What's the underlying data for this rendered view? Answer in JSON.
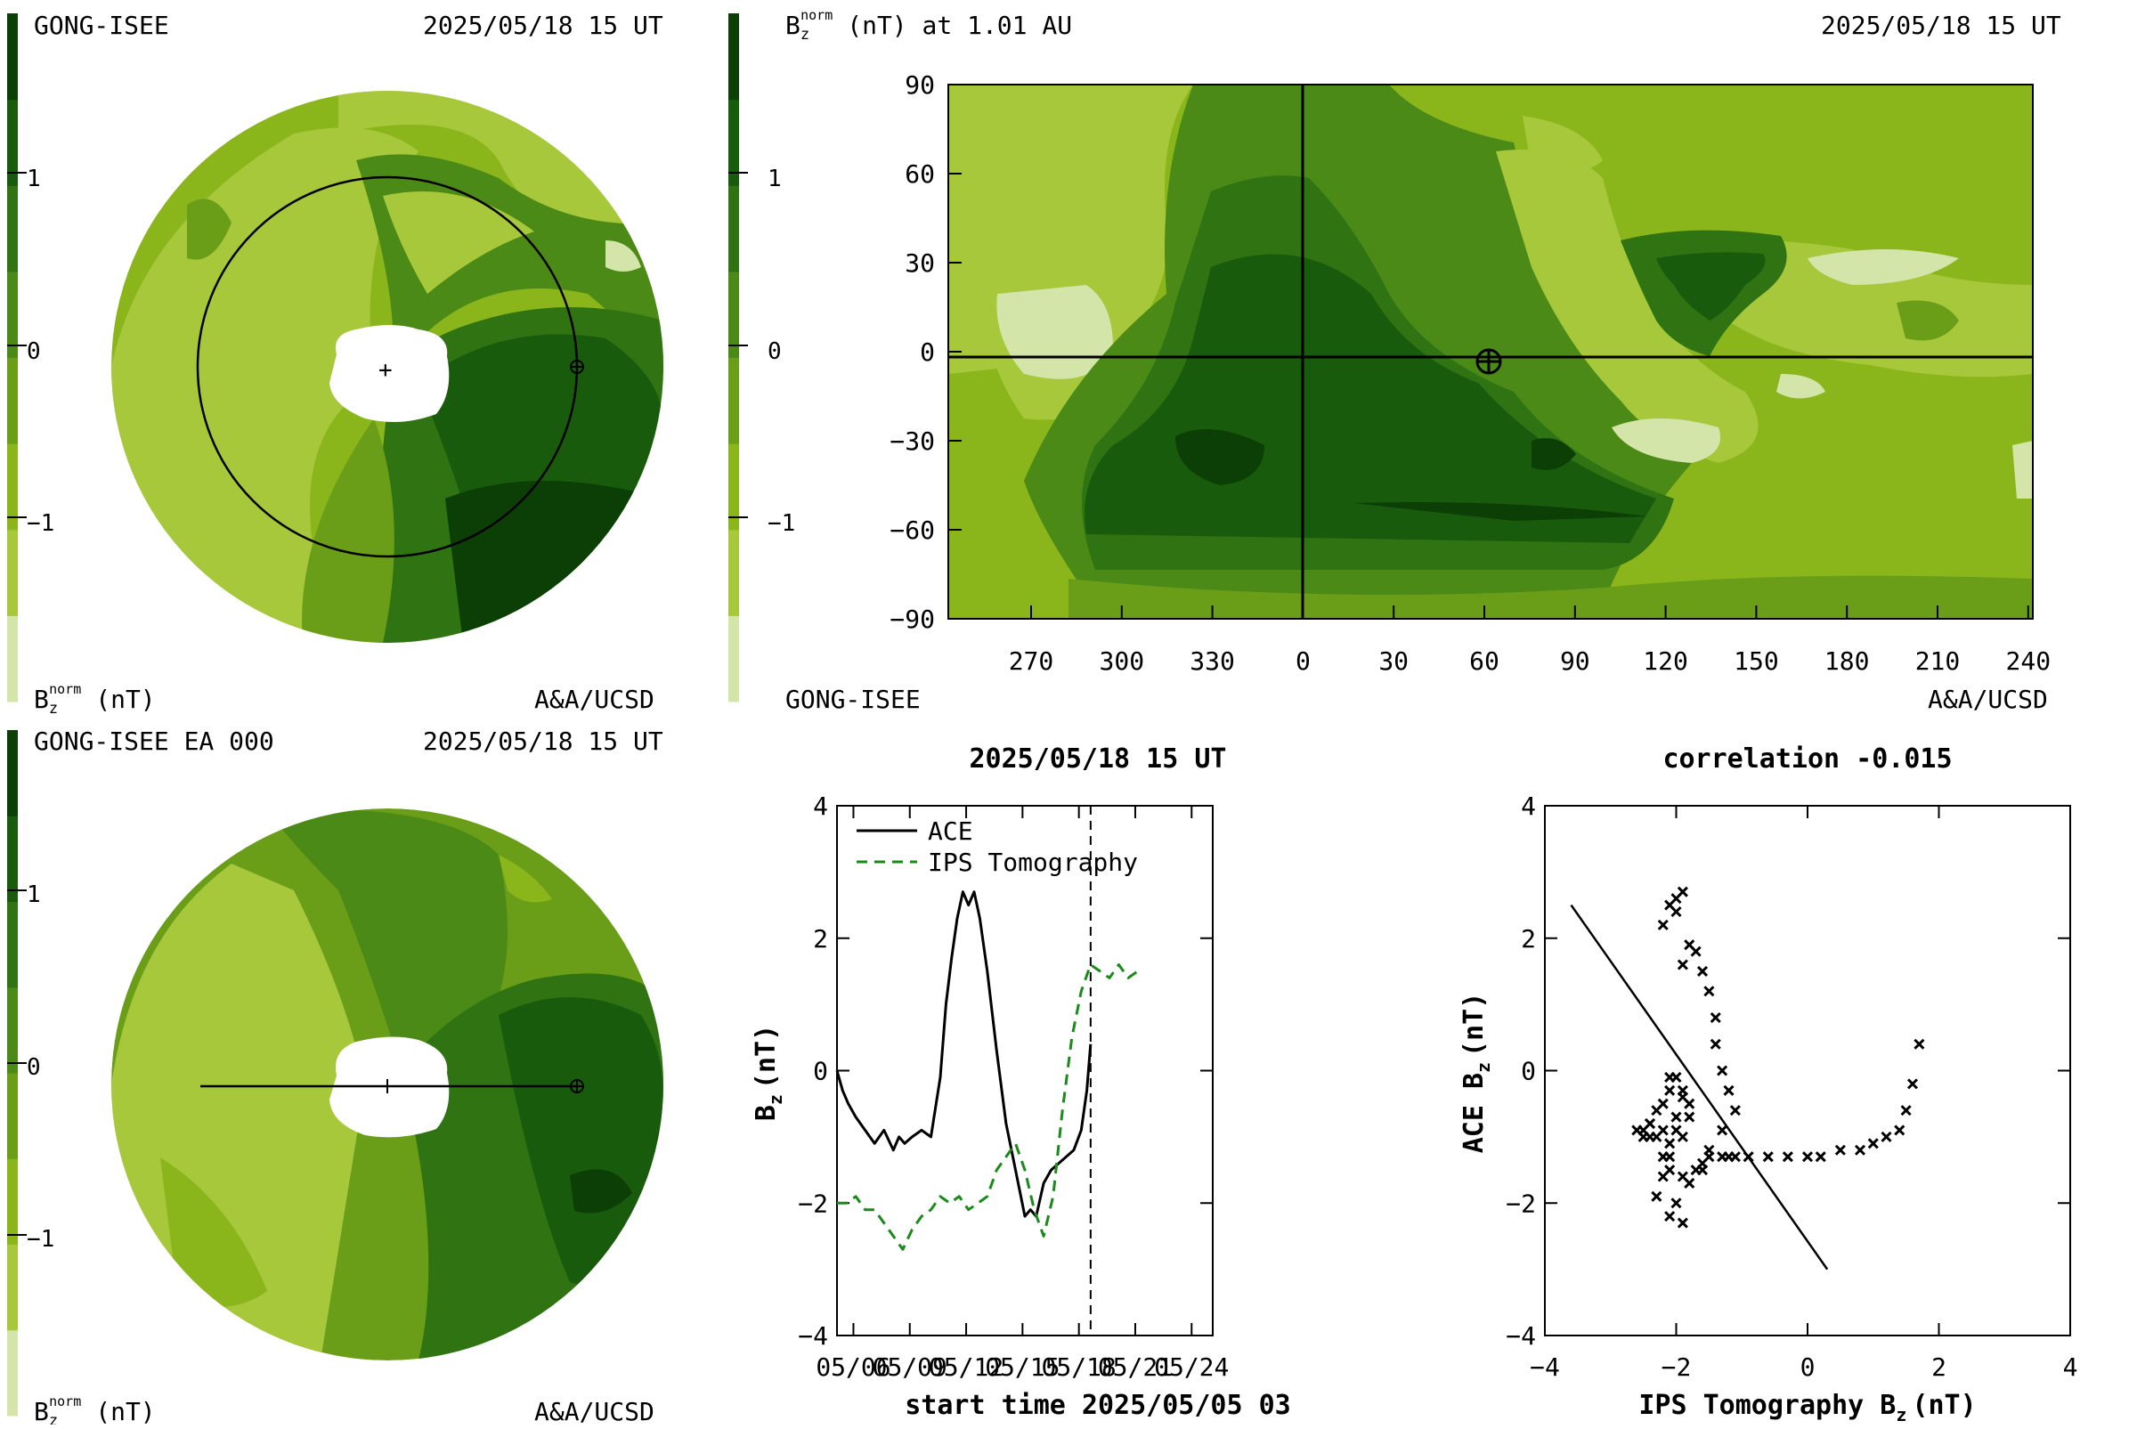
{
  "palette": {
    "levels": [
      "#d3e5a9",
      "#a6c83a",
      "#8ab61c",
      "#6b9e18",
      "#4c8a17",
      "#2f7312",
      "#195b0c",
      "#0c3f06"
    ],
    "dark_core": "#0a3304",
    "sun_disk": "#ffffff"
  },
  "colorbar": {
    "ticks": [
      "1",
      "0",
      "−1"
    ]
  },
  "panel_top_left": {
    "header_left": "GONG-ISEE",
    "header_right": "2025/05/18 15 UT",
    "footer_left_main": "B",
    "footer_left_sub": "z",
    "footer_left_sup": "norm",
    "footer_left_unit": "(nT)",
    "footer_right": "A&A/UCSD"
  },
  "panel_bottom_left": {
    "header_left": "GONG-ISEE EA 000",
    "header_right": "2025/05/18 15 UT",
    "footer_left_main": "B",
    "footer_left_sub": "z",
    "footer_left_sup": "norm",
    "footer_left_unit": "(nT)",
    "footer_right": "A&A/UCSD"
  },
  "panel_map": {
    "title_main": "B",
    "title_sub": "z",
    "title_sup": "norm",
    "title_rest": "(nT) at 1.01 AU",
    "header_right": "2025/05/18 15 UT",
    "footer_left": "GONG-ISEE",
    "footer_right": "A&A/UCSD",
    "yticks": [
      "90",
      "60",
      "30",
      "0",
      "−30",
      "−60",
      "−90"
    ],
    "xticks": [
      "270",
      "300",
      "330",
      "0",
      "30",
      "60",
      "90",
      "120",
      "150",
      "180",
      "210",
      "240"
    ]
  },
  "chart_data": [
    {
      "type": "line",
      "title": "2025/05/18 15 UT",
      "xlabel": "start time 2025/05/05 03",
      "ylabel_main": "B",
      "ylabel_sub": "z",
      "ylabel_unit": "(nT)",
      "ylim": [
        -4,
        4
      ],
      "yticks": [
        "4",
        "2",
        "0",
        "−2",
        "−4"
      ],
      "xticks": [
        "05/06",
        "05/09",
        "05/12",
        "05/15",
        "05/18",
        "05/21",
        "05/24"
      ],
      "xtick_days": [
        0.875,
        3.875,
        6.875,
        9.875,
        12.875,
        15.875,
        18.875
      ],
      "xlim_days": [
        0,
        20
      ],
      "current_time_day": 13.5,
      "series": [
        {
          "name": "ACE",
          "color": "#000000",
          "dash": "solid",
          "x": [
            0,
            0.3,
            0.6,
            1.0,
            1.5,
            2.0,
            2.5,
            3.0,
            3.3,
            3.6,
            4.0,
            4.5,
            5.0,
            5.5,
            5.8,
            6.1,
            6.4,
            6.7,
            7.0,
            7.3,
            7.6,
            8.0,
            8.5,
            9.0,
            9.5,
            10.0,
            10.3,
            10.6,
            11.0,
            11.4,
            11.8,
            12.2,
            12.6,
            13.0,
            13.3,
            13.5
          ],
          "y": [
            0.0,
            -0.3,
            -0.5,
            -0.7,
            -0.9,
            -1.1,
            -0.9,
            -1.2,
            -1.0,
            -1.1,
            -1.0,
            -0.9,
            -1.0,
            -0.1,
            1.0,
            1.7,
            2.3,
            2.7,
            2.5,
            2.7,
            2.3,
            1.5,
            0.3,
            -0.8,
            -1.5,
            -2.2,
            -2.1,
            -2.2,
            -1.7,
            -1.5,
            -1.4,
            -1.3,
            -1.2,
            -0.9,
            -0.3,
            0.4
          ]
        },
        {
          "name": "IPS Tomography",
          "color": "#1a8a1a",
          "dash": "dashed",
          "x": [
            0,
            0.5,
            1.0,
            1.5,
            2.0,
            2.5,
            3.0,
            3.5,
            4.0,
            4.5,
            5.0,
            5.5,
            6.0,
            6.5,
            7.0,
            7.5,
            8.0,
            8.5,
            9.0,
            9.5,
            10.0,
            10.5,
            11.0,
            11.5,
            12.0,
            12.5,
            13.0,
            13.5,
            14.0,
            14.5,
            15.0,
            15.5,
            16.0
          ],
          "y": [
            -2.0,
            -2.0,
            -1.9,
            -2.1,
            -2.1,
            -2.3,
            -2.5,
            -2.7,
            -2.4,
            -2.2,
            -2.1,
            -1.9,
            -2.0,
            -1.9,
            -2.1,
            -2.0,
            -1.9,
            -1.5,
            -1.3,
            -1.1,
            -1.5,
            -2.1,
            -2.5,
            -1.9,
            -0.6,
            0.5,
            1.2,
            1.6,
            1.5,
            1.4,
            1.6,
            1.4,
            1.5
          ]
        }
      ]
    },
    {
      "type": "scatter",
      "title": "correlation -0.015",
      "xlabel_main": "IPS Tomography B",
      "xlabel_sub": "z",
      "xlabel_unit": "(nT)",
      "ylabel_main": "ACE B",
      "ylabel_sub": "z",
      "ylabel_unit": "(nT)",
      "xlim": [
        -4,
        4
      ],
      "ylim": [
        -4,
        4
      ],
      "xticks": [
        "−4",
        "−2",
        "0",
        "2",
        "4"
      ],
      "yticks": [
        "4",
        "2",
        "0",
        "−2",
        "−4"
      ],
      "fit_line": {
        "x": [
          -3.6,
          0.3
        ],
        "y": [
          2.5,
          -3.0
        ]
      },
      "points": {
        "x": [
          -2.0,
          -2.1,
          -1.9,
          -2.0,
          -2.2,
          -1.8,
          -1.9,
          -1.7,
          -1.6,
          -1.5,
          -1.4,
          -1.4,
          -1.3,
          -1.2,
          -1.1,
          -1.3,
          -1.5,
          -1.6,
          -1.8,
          -2.0,
          -2.1,
          -1.9,
          -2.3,
          -2.2,
          -2.1,
          -1.9,
          -1.8,
          -1.9,
          -2.0,
          -2.1,
          -2.2,
          -2.4,
          -2.5,
          -2.6,
          -2.4,
          -2.2,
          -2.0,
          -1.8,
          -1.9,
          -2.1,
          -2.3,
          -2.4,
          -2.5,
          -2.3,
          -2.1,
          -2.0,
          -2.2,
          -2.1,
          -1.9,
          -1.7,
          -1.6,
          -1.5,
          -1.3,
          -1.2,
          -1.1,
          -0.9,
          -0.6,
          -0.3,
          0.0,
          0.2,
          0.5,
          0.8,
          1.0,
          1.2,
          1.4,
          1.5,
          1.6,
          1.7
        ],
        "y": [
          2.6,
          2.5,
          2.7,
          2.4,
          2.2,
          1.9,
          1.6,
          1.8,
          1.5,
          1.2,
          0.8,
          0.4,
          0.0,
          -0.3,
          -0.6,
          -0.9,
          -1.2,
          -1.5,
          -1.7,
          -2.0,
          -2.2,
          -2.3,
          -1.9,
          -1.6,
          -1.3,
          -1.0,
          -0.7,
          -0.4,
          -0.1,
          -0.3,
          -0.5,
          -0.8,
          -1.0,
          -0.9,
          -1.0,
          -0.9,
          -0.7,
          -0.5,
          -0.3,
          -0.1,
          -0.6,
          -0.8,
          -0.9,
          -1.0,
          -1.1,
          -0.9,
          -1.3,
          -1.5,
          -1.6,
          -1.5,
          -1.4,
          -1.3,
          -1.3,
          -1.3,
          -1.3,
          -1.3,
          -1.3,
          -1.3,
          -1.3,
          -1.3,
          -1.2,
          -1.2,
          -1.1,
          -1.0,
          -0.9,
          -0.6,
          -0.2,
          0.4
        ]
      }
    }
  ]
}
